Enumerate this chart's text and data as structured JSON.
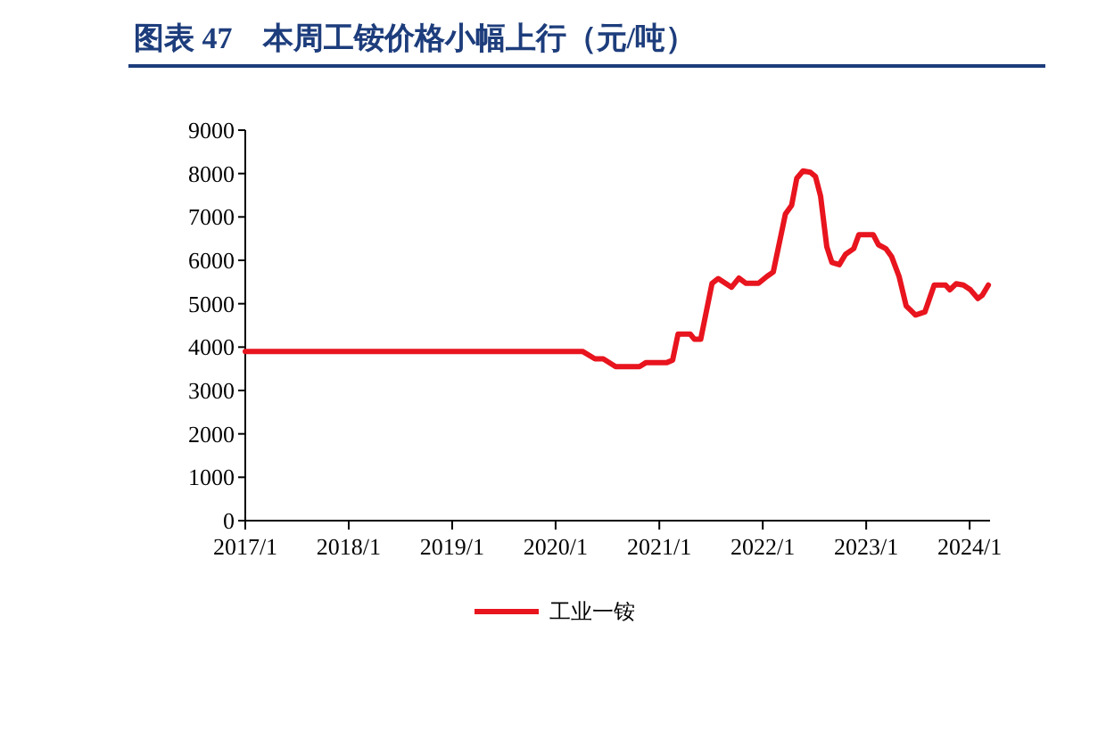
{
  "chart_data": {
    "type": "line",
    "title": "图表 47　本周工铵价格小幅上行（元/吨）",
    "x": [
      "2017-01-01",
      "2020-04-05",
      "2020-05-19",
      "2020-06-17",
      "2020-07-31",
      "2020-10-23",
      "2020-11-14",
      "2021-01-26",
      "2021-02-17",
      "2021-03-08",
      "2021-04-20",
      "2021-05-05",
      "2021-05-27",
      "2021-07-06",
      "2021-07-28",
      "2021-09-13",
      "2021-10-09",
      "2021-11-03",
      "2021-12-17",
      "2022-01-16",
      "2022-02-07",
      "2022-03-22",
      "2022-04-13",
      "2022-05-01",
      "2022-05-23",
      "2022-06-18",
      "2022-07-06",
      "2022-07-24",
      "2022-08-15",
      "2022-09-02",
      "2022-09-28",
      "2022-10-20",
      "2022-11-18",
      "2022-12-06",
      "2023-01-26",
      "2023-02-13",
      "2023-03-11",
      "2023-04-01",
      "2023-04-27",
      "2023-05-22",
      "2023-06-24",
      "2023-07-27",
      "2023-08-29",
      "2023-10-08",
      "2023-10-23",
      "2023-11-14",
      "2023-12-10",
      "2024-01-04",
      "2024-01-30",
      "2024-02-14",
      "2024-03-07"
    ],
    "series": [
      {
        "name": "工业一铵",
        "color": "#e8141e",
        "values": [
          3900,
          3900,
          3730,
          3730,
          3550,
          3550,
          3640,
          3640,
          3700,
          4300,
          4300,
          4180,
          4180,
          5470,
          5580,
          5380,
          5590,
          5470,
          5470,
          5630,
          5730,
          7070,
          7270,
          7890,
          8060,
          8030,
          7930,
          7480,
          6310,
          5950,
          5900,
          6140,
          6270,
          6590,
          6590,
          6360,
          6270,
          6080,
          5630,
          4950,
          4740,
          4810,
          5430,
          5430,
          5320,
          5460,
          5430,
          5320,
          5120,
          5190,
          5430
        ]
      }
    ],
    "xlim": [
      "2017-01-01",
      "2024-03-13"
    ],
    "xticks": [
      {
        "value": "2017-01",
        "label": "2017/1"
      },
      {
        "value": "2018-01",
        "label": "2018/1"
      },
      {
        "value": "2019-01",
        "label": "2019/1"
      },
      {
        "value": "2020-01",
        "label": "2020/1"
      },
      {
        "value": "2021-01",
        "label": "2021/1"
      },
      {
        "value": "2022-01",
        "label": "2022/1"
      },
      {
        "value": "2023-01",
        "label": "2023/1"
      },
      {
        "value": "2024-01",
        "label": "2024/1"
      }
    ],
    "ylim": [
      0,
      9000
    ],
    "yticks": [
      0,
      1000,
      2000,
      3000,
      4000,
      5000,
      6000,
      7000,
      8000,
      9000
    ],
    "legend": "bottom",
    "grid": false
  }
}
